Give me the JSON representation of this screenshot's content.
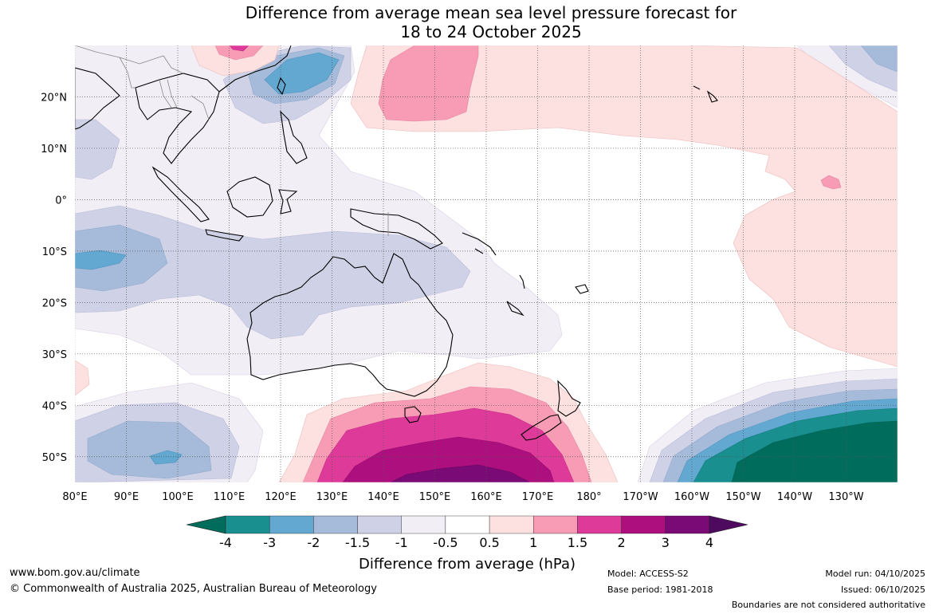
{
  "title": {
    "line1": "Difference from average mean sea level pressure forecast for",
    "line2": "18 to 24 October 2025"
  },
  "map": {
    "lon_range": [
      80,
      240
    ],
    "lat_range": [
      -55,
      30
    ],
    "lon_ticks": [
      {
        "lon": 80,
        "label": "80°E"
      },
      {
        "lon": 90,
        "label": "90°E"
      },
      {
        "lon": 100,
        "label": "100°E"
      },
      {
        "lon": 110,
        "label": "110°E"
      },
      {
        "lon": 120,
        "label": "120°E"
      },
      {
        "lon": 130,
        "label": "130°E"
      },
      {
        "lon": 140,
        "label": "140°E"
      },
      {
        "lon": 150,
        "label": "150°E"
      },
      {
        "lon": 160,
        "label": "160°E"
      },
      {
        "lon": 170,
        "label": "170°E"
      },
      {
        "lon": 180,
        "label": "180°"
      },
      {
        "lon": 190,
        "label": "170°W"
      },
      {
        "lon": 200,
        "label": "160°W"
      },
      {
        "lon": 210,
        "label": "150°W"
      },
      {
        "lon": 220,
        "label": "140°W"
      },
      {
        "lon": 230,
        "label": "130°W"
      }
    ],
    "lat_ticks": [
      {
        "lat": 20,
        "label": "20°N"
      },
      {
        "lat": 10,
        "label": "10°N"
      },
      {
        "lat": 0,
        "label": "0°"
      },
      {
        "lat": -10,
        "label": "10°S"
      },
      {
        "lat": -20,
        "label": "20°S"
      },
      {
        "lat": -30,
        "label": "30°S"
      },
      {
        "lat": -40,
        "label": "40°S"
      },
      {
        "lat": -50,
        "label": "50°S"
      }
    ]
  },
  "colorbar": {
    "title": "Difference from average (hPa)",
    "labels": [
      "-4",
      "-3",
      "-2",
      "-1.5",
      "-1",
      "-0.5",
      "0.5",
      "1",
      "1.5",
      "2",
      "3",
      "4"
    ],
    "colors": [
      "#1a8f8f",
      "#62a8d0",
      "#a6bbda",
      "#cfd1e6",
      "#f2eef6",
      "#ffffff",
      "#fde0e0",
      "#f89cb5",
      "#de3a9a",
      "#ad0f7e",
      "#7a0a76"
    ],
    "extend_low_color": "#006d5c",
    "extend_high_color": "#4e0a5e"
  },
  "footer": {
    "website": "www.bom.gov.au/climate",
    "copyright": "© Commonwealth of Australia 2025, Australian Bureau of Meteorology",
    "model": "Model: ACCESS-S2",
    "base_period": "Base period: 1981-2018",
    "model_run": "Model run: 04/10/2025",
    "issued": "Issued: 06/10/2025",
    "disclaimer": "Boundaries are not considered authoritative"
  }
}
